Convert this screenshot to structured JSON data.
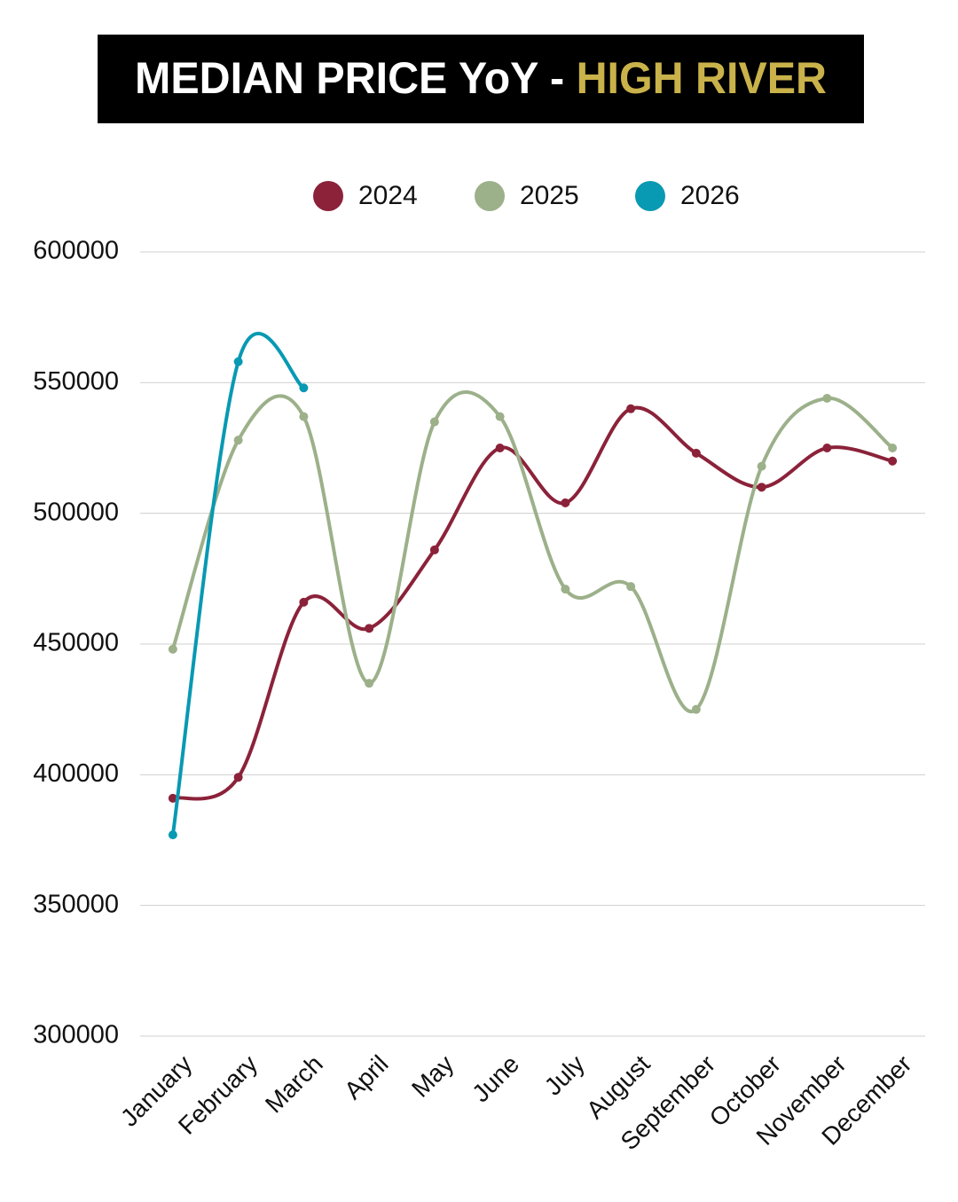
{
  "chart_data": {
    "type": "line",
    "title": "MEDIAN PRICE YoY - ",
    "title_highlight": "HIGH RIVER",
    "categories": [
      "January",
      "February",
      "March",
      "April",
      "May",
      "June",
      "July",
      "August",
      "September",
      "October",
      "November",
      "December"
    ],
    "series": [
      {
        "name": "2024",
        "color": "#8b2239",
        "values": [
          391000,
          399000,
          466000,
          456000,
          486000,
          525000,
          504000,
          540000,
          523000,
          510000,
          525000,
          520000
        ]
      },
      {
        "name": "2025",
        "color": "#9cb08a",
        "values": [
          448000,
          528000,
          537000,
          435000,
          535000,
          537000,
          471000,
          472000,
          425000,
          518000,
          544000,
          525000
        ]
      },
      {
        "name": "2026",
        "color": "#0899b3",
        "values": [
          377000,
          558000,
          548000,
          null,
          null,
          null,
          null,
          null,
          null,
          null,
          null,
          null
        ]
      }
    ],
    "ylim": [
      300000,
      600000
    ],
    "yticks": [
      300000,
      350000,
      400000,
      450000,
      500000,
      550000,
      600000
    ],
    "grid": true,
    "legend": "top",
    "smooth": true
  }
}
